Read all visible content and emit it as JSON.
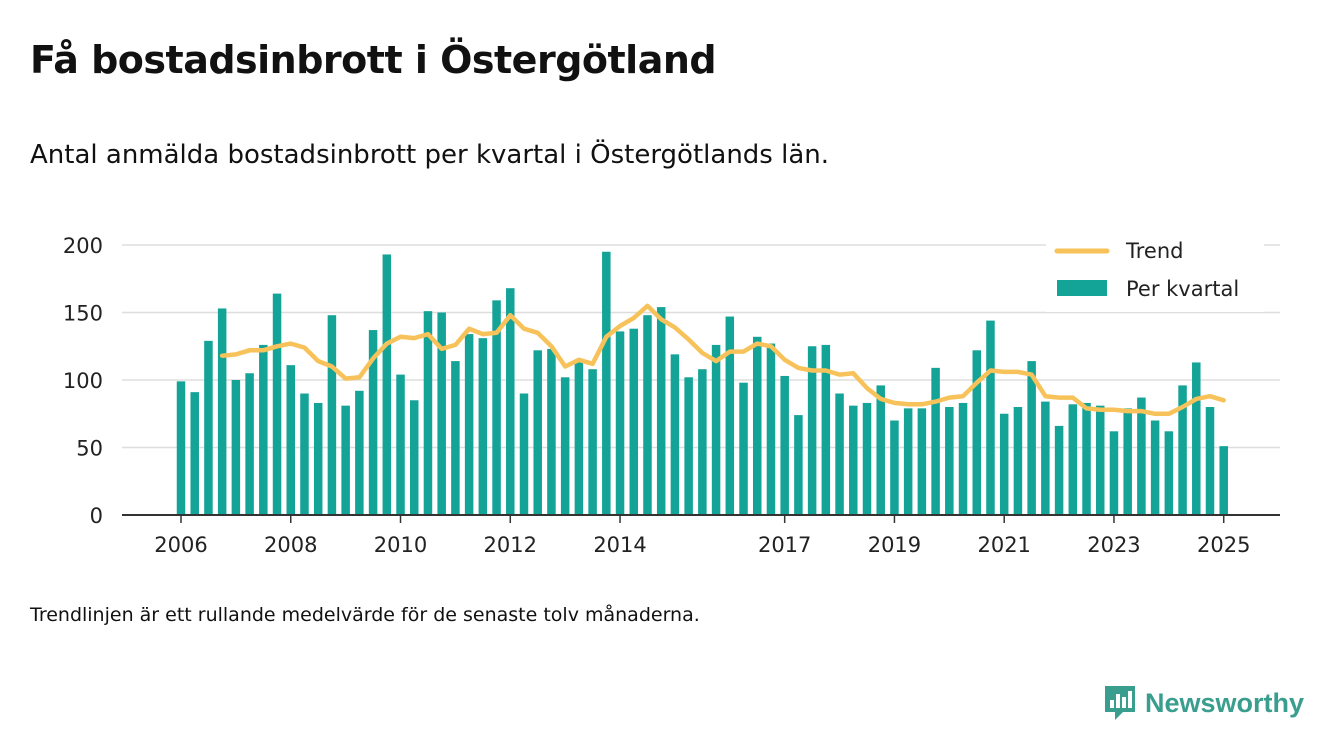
{
  "title": "Få bostadsinbrott i Östergötland",
  "subtitle": "Antal anmälda bostadsinbrott per kvartal i Östergötlands län.",
  "footnote": "Trendlinjen är ett rullande medelvärde för de senaste tolv månaderna.",
  "brand": {
    "name": "Newsworthy",
    "icon": "newsworthy-logo-icon"
  },
  "colors": {
    "bars": "#14a397",
    "trend": "#f7c25a",
    "grid": "#dddddd",
    "axis": "#333333"
  },
  "chart_data": {
    "type": "bar",
    "ylim": [
      0,
      200
    ],
    "yticks": [
      0,
      50,
      100,
      150,
      200
    ],
    "grid": true,
    "legend_position": "top-right",
    "xtick_labels": [
      {
        "label": "2006",
        "index": 0
      },
      {
        "label": "2008",
        "index": 8
      },
      {
        "label": "2010",
        "index": 16
      },
      {
        "label": "2012",
        "index": 24
      },
      {
        "label": "2014",
        "index": 32
      },
      {
        "label": "2017",
        "index": 44
      },
      {
        "label": "2019",
        "index": 52
      },
      {
        "label": "2021",
        "index": 60
      },
      {
        "label": "2023",
        "index": 68
      },
      {
        "label": "2025",
        "index": 76
      }
    ],
    "series": [
      {
        "name": "Per kvartal",
        "kind": "bar",
        "values": [
          99,
          91,
          129,
          153,
          100,
          105,
          126,
          164,
          111,
          90,
          83,
          148,
          81,
          92,
          137,
          193,
          104,
          85,
          151,
          150,
          114,
          134,
          131,
          159,
          168,
          90,
          122,
          123,
          102,
          113,
          108,
          195,
          136,
          138,
          148,
          154,
          119,
          102,
          108,
          126,
          147,
          98,
          132,
          127,
          103,
          74,
          125,
          126,
          90,
          81,
          83,
          96,
          70,
          79,
          79,
          109,
          80,
          83,
          122,
          144,
          75,
          80,
          114,
          84,
          66,
          82,
          83,
          81,
          62,
          79,
          87,
          70,
          62,
          96,
          113,
          80,
          51
        ]
      },
      {
        "name": "Trend",
        "kind": "line",
        "start_index": 3,
        "values": [
          118,
          119,
          122,
          122,
          125,
          127,
          124,
          114,
          110,
          101,
          102,
          116,
          127,
          132,
          131,
          134,
          123,
          126,
          138,
          134,
          135,
          148,
          138,
          135,
          125,
          110,
          115,
          112,
          132,
          140,
          146,
          155,
          145,
          139,
          130,
          120,
          114,
          121,
          121,
          127,
          125,
          115,
          109,
          107,
          107,
          104,
          105,
          94,
          86,
          83,
          82,
          82,
          84,
          87,
          88,
          98,
          107,
          106,
          106,
          104,
          88,
          87,
          87,
          79,
          78,
          78,
          77,
          77,
          75,
          75,
          80,
          86,
          88,
          85
        ]
      }
    ]
  }
}
